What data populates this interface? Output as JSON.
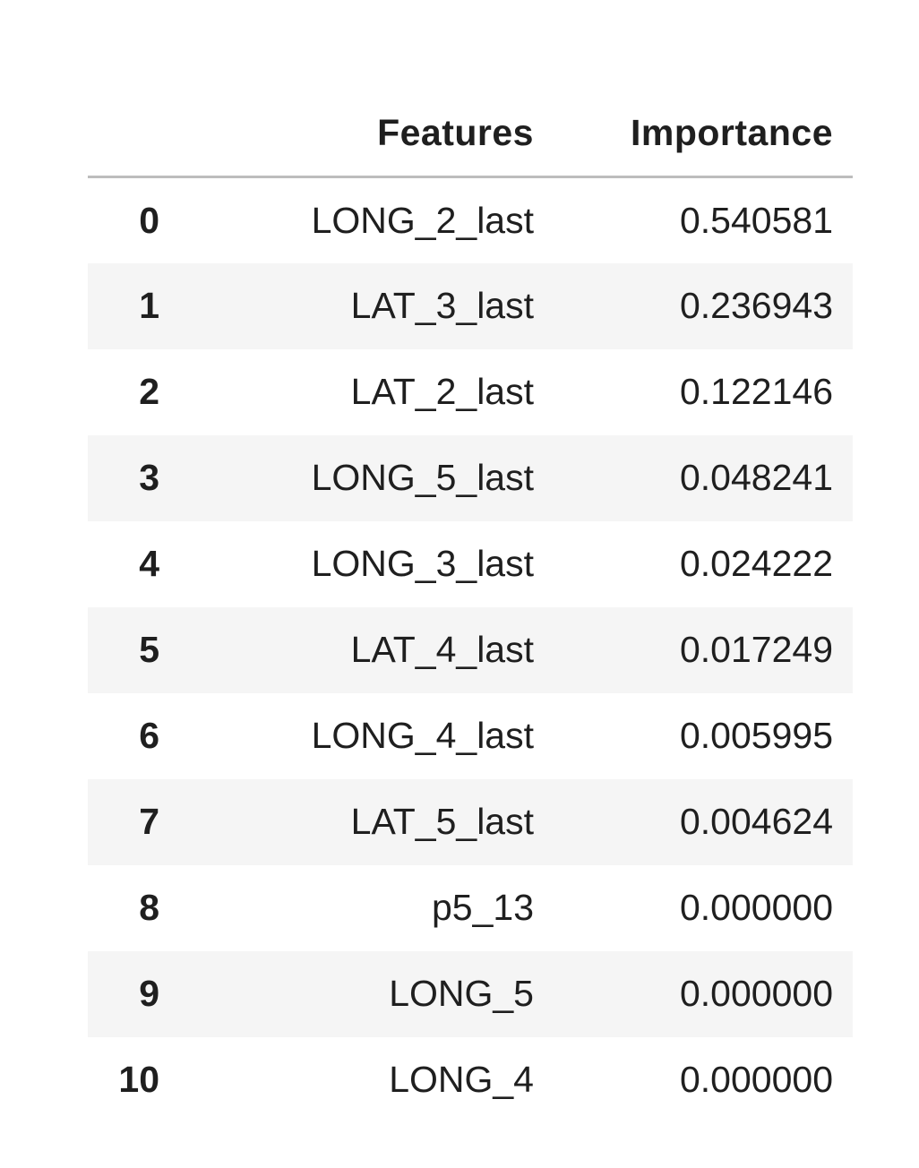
{
  "table": {
    "headers": {
      "index": "",
      "features": "Features",
      "importance": "Importance"
    },
    "rows": [
      {
        "index": "0",
        "feature": "LONG_2_last",
        "importance": "0.540581"
      },
      {
        "index": "1",
        "feature": "LAT_3_last",
        "importance": "0.236943"
      },
      {
        "index": "2",
        "feature": "LAT_2_last",
        "importance": "0.122146"
      },
      {
        "index": "3",
        "feature": "LONG_5_last",
        "importance": "0.048241"
      },
      {
        "index": "4",
        "feature": "LONG_3_last",
        "importance": "0.024222"
      },
      {
        "index": "5",
        "feature": "LAT_4_last",
        "importance": "0.017249"
      },
      {
        "index": "6",
        "feature": "LONG_4_last",
        "importance": "0.005995"
      },
      {
        "index": "7",
        "feature": "LAT_5_last",
        "importance": "0.004624"
      },
      {
        "index": "8",
        "feature": "p5_13",
        "importance": "0.000000"
      },
      {
        "index": "9",
        "feature": "LONG_5",
        "importance": "0.000000"
      },
      {
        "index": "10",
        "feature": "LONG_4",
        "importance": "0.000000"
      }
    ]
  },
  "colors": {
    "stripe": "#f5f5f5",
    "header_rule": "#bdbdbd",
    "text": "#1f1f1f"
  }
}
